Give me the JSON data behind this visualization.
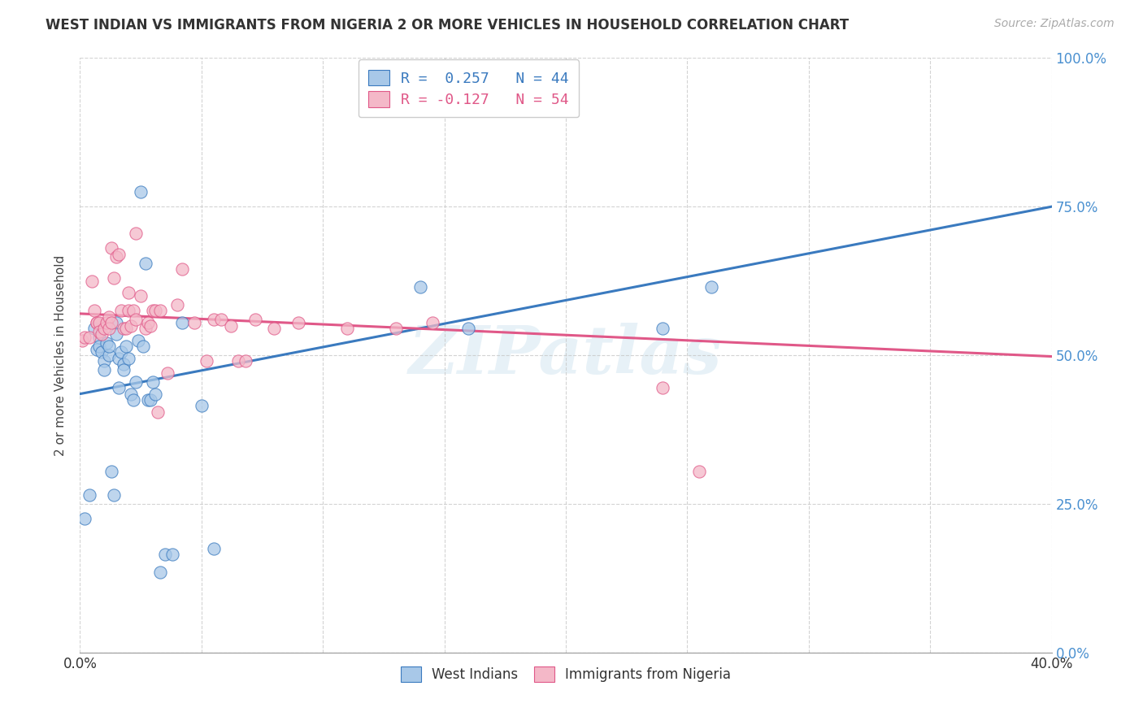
{
  "title": "WEST INDIAN VS IMMIGRANTS FROM NIGERIA 2 OR MORE VEHICLES IN HOUSEHOLD CORRELATION CHART",
  "source": "Source: ZipAtlas.com",
  "ylabel": "2 or more Vehicles in Household",
  "watermark": "ZIPatlas",
  "blue_color": "#a8c8e8",
  "pink_color": "#f4b8c8",
  "line_blue": "#3a7abf",
  "line_pink": "#e05888",
  "legend_line1": "R =  0.257   N = 44",
  "legend_line2": "R = -0.127   N = 54",
  "legend_text_blue": "#3a7abf",
  "legend_text_pink": "#e05888",
  "right_tick_color": "#4a90d0",
  "blue_scatter_x": [
    0.002,
    0.004,
    0.006,
    0.007,
    0.008,
    0.008,
    0.009,
    0.01,
    0.01,
    0.011,
    0.012,
    0.012,
    0.013,
    0.014,
    0.015,
    0.015,
    0.016,
    0.016,
    0.017,
    0.018,
    0.018,
    0.019,
    0.02,
    0.021,
    0.022,
    0.023,
    0.024,
    0.025,
    0.026,
    0.027,
    0.028,
    0.029,
    0.03,
    0.031,
    0.033,
    0.035,
    0.038,
    0.042,
    0.05,
    0.055,
    0.14,
    0.16,
    0.24,
    0.26
  ],
  "blue_scatter_y": [
    0.225,
    0.265,
    0.545,
    0.51,
    0.53,
    0.515,
    0.505,
    0.49,
    0.475,
    0.52,
    0.5,
    0.515,
    0.305,
    0.265,
    0.555,
    0.535,
    0.495,
    0.445,
    0.505,
    0.485,
    0.475,
    0.515,
    0.495,
    0.435,
    0.425,
    0.455,
    0.525,
    0.775,
    0.515,
    0.655,
    0.425,
    0.425,
    0.455,
    0.435,
    0.135,
    0.165,
    0.165,
    0.555,
    0.415,
    0.175,
    0.615,
    0.545,
    0.545,
    0.615
  ],
  "pink_scatter_x": [
    0.001,
    0.002,
    0.004,
    0.005,
    0.006,
    0.007,
    0.007,
    0.008,
    0.008,
    0.009,
    0.01,
    0.011,
    0.012,
    0.012,
    0.013,
    0.013,
    0.014,
    0.015,
    0.016,
    0.017,
    0.018,
    0.019,
    0.02,
    0.02,
    0.021,
    0.022,
    0.023,
    0.023,
    0.025,
    0.027,
    0.028,
    0.029,
    0.03,
    0.031,
    0.032,
    0.033,
    0.036,
    0.04,
    0.042,
    0.047,
    0.052,
    0.055,
    0.058,
    0.062,
    0.065,
    0.068,
    0.072,
    0.08,
    0.09,
    0.11,
    0.13,
    0.145,
    0.24,
    0.255
  ],
  "pink_scatter_y": [
    0.525,
    0.53,
    0.53,
    0.625,
    0.575,
    0.555,
    0.555,
    0.555,
    0.54,
    0.535,
    0.545,
    0.555,
    0.565,
    0.545,
    0.555,
    0.68,
    0.63,
    0.665,
    0.67,
    0.575,
    0.545,
    0.545,
    0.605,
    0.575,
    0.55,
    0.575,
    0.56,
    0.705,
    0.6,
    0.545,
    0.555,
    0.55,
    0.575,
    0.575,
    0.405,
    0.575,
    0.47,
    0.585,
    0.645,
    0.555,
    0.49,
    0.56,
    0.56,
    0.55,
    0.49,
    0.49,
    0.56,
    0.545,
    0.555,
    0.545,
    0.545,
    0.555,
    0.445,
    0.305
  ],
  "blue_line_x": [
    0.0,
    0.4
  ],
  "blue_line_y": [
    0.435,
    0.75
  ],
  "pink_line_x": [
    0.0,
    0.4
  ],
  "pink_line_y": [
    0.57,
    0.498
  ],
  "xlim": [
    0.0,
    0.4
  ],
  "ylim": [
    0.0,
    1.0
  ],
  "y_ticks": [
    0.0,
    0.25,
    0.5,
    0.75,
    1.0
  ],
  "y_tick_labels": [
    "0.0%",
    "25.0%",
    "50.0%",
    "75.0%",
    "100.0%"
  ]
}
